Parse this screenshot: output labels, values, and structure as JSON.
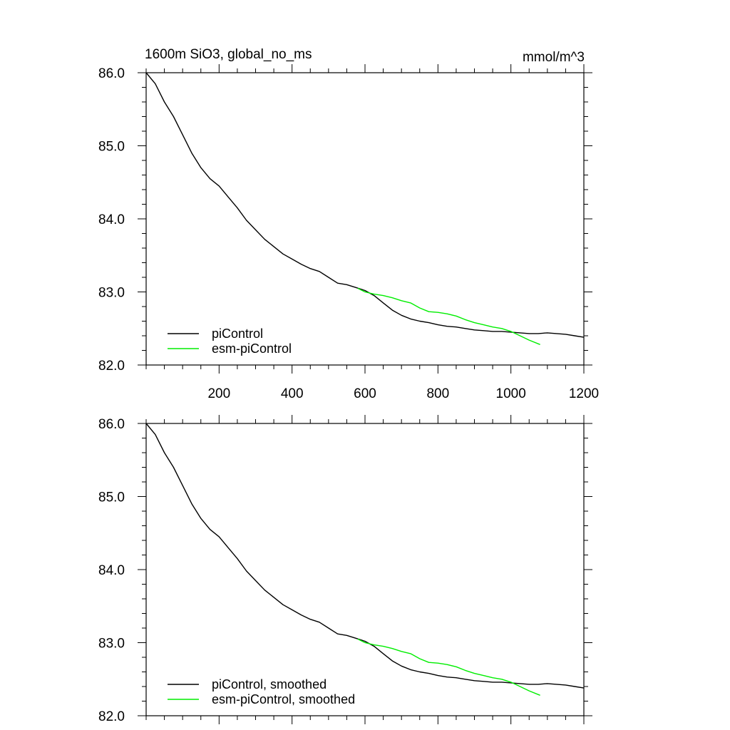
{
  "chart_data": [
    {
      "type": "line",
      "title": "1600m SiO3, global_no_ms",
      "units": "mmol/m^3",
      "xlim": [
        0,
        1200
      ],
      "ylim": [
        82.0,
        86.0
      ],
      "xticks": [
        200,
        400,
        600,
        800,
        1000,
        1200
      ],
      "yticks": [
        "82.0",
        "83.0",
        "84.0",
        "85.0",
        "86.0"
      ],
      "legend_position": "bottom-left",
      "series": [
        {
          "name": "piControl",
          "color": "#000000",
          "x": [
            0,
            25,
            50,
            75,
            100,
            125,
            150,
            175,
            200,
            225,
            250,
            275,
            300,
            325,
            350,
            375,
            400,
            425,
            450,
            475,
            500,
            525,
            550,
            575,
            600,
            625,
            650,
            675,
            700,
            725,
            750,
            775,
            800,
            825,
            850,
            875,
            900,
            925,
            950,
            975,
            1000,
            1025,
            1050,
            1075,
            1100,
            1125,
            1150,
            1175,
            1200
          ],
          "y": [
            86.0,
            85.85,
            85.6,
            85.4,
            85.15,
            84.9,
            84.7,
            84.55,
            84.45,
            84.3,
            84.15,
            83.98,
            83.85,
            83.72,
            83.62,
            83.52,
            83.45,
            83.38,
            83.32,
            83.28,
            83.2,
            83.12,
            83.1,
            83.06,
            83.02,
            82.95,
            82.85,
            82.75,
            82.68,
            82.63,
            82.6,
            82.58,
            82.55,
            82.53,
            82.52,
            82.5,
            82.48,
            82.47,
            82.46,
            82.46,
            82.45,
            82.44,
            82.43,
            82.43,
            82.44,
            82.43,
            82.42,
            82.4,
            82.38
          ]
        },
        {
          "name": "esm-piControl",
          "color": "#00ee00",
          "x": [
            580,
            600,
            625,
            650,
            675,
            700,
            725,
            750,
            775,
            800,
            825,
            850,
            875,
            900,
            925,
            950,
            975,
            1000,
            1025,
            1050,
            1080
          ],
          "y": [
            83.05,
            83.0,
            82.97,
            82.95,
            82.92,
            82.88,
            82.85,
            82.78,
            82.73,
            82.72,
            82.7,
            82.67,
            82.62,
            82.58,
            82.55,
            82.52,
            82.5,
            82.46,
            82.4,
            82.34,
            82.28
          ]
        }
      ]
    },
    {
      "type": "line",
      "title": "",
      "xlim": [
        0,
        1200
      ],
      "ylim": [
        82.0,
        86.0
      ],
      "yticks": [
        "82.0",
        "83.0",
        "84.0",
        "85.0",
        "86.0"
      ],
      "legend_position": "bottom-left",
      "series": [
        {
          "name": "piControl, smoothed",
          "color": "#000000",
          "x": [
            0,
            25,
            50,
            75,
            100,
            125,
            150,
            175,
            200,
            225,
            250,
            275,
            300,
            325,
            350,
            375,
            400,
            425,
            450,
            475,
            500,
            525,
            550,
            575,
            600,
            625,
            650,
            675,
            700,
            725,
            750,
            775,
            800,
            825,
            850,
            875,
            900,
            925,
            950,
            975,
            1000,
            1025,
            1050,
            1075,
            1100,
            1125,
            1150,
            1175,
            1200
          ],
          "y": [
            86.0,
            85.85,
            85.6,
            85.4,
            85.15,
            84.9,
            84.7,
            84.55,
            84.45,
            84.3,
            84.15,
            83.98,
            83.85,
            83.72,
            83.62,
            83.52,
            83.45,
            83.38,
            83.32,
            83.28,
            83.2,
            83.12,
            83.1,
            83.06,
            83.02,
            82.95,
            82.85,
            82.75,
            82.68,
            82.63,
            82.6,
            82.58,
            82.55,
            82.53,
            82.52,
            82.5,
            82.48,
            82.47,
            82.46,
            82.46,
            82.45,
            82.44,
            82.43,
            82.43,
            82.44,
            82.43,
            82.42,
            82.4,
            82.38
          ]
        },
        {
          "name": "esm-piControl, smoothed",
          "color": "#00ee00",
          "x": [
            580,
            600,
            625,
            650,
            675,
            700,
            725,
            750,
            775,
            800,
            825,
            850,
            875,
            900,
            925,
            950,
            975,
            1000,
            1025,
            1050,
            1080
          ],
          "y": [
            83.05,
            83.0,
            82.97,
            82.95,
            82.92,
            82.88,
            82.85,
            82.78,
            82.73,
            82.72,
            82.7,
            82.67,
            82.62,
            82.58,
            82.55,
            82.52,
            82.5,
            82.46,
            82.4,
            82.34,
            82.28
          ]
        }
      ]
    }
  ]
}
